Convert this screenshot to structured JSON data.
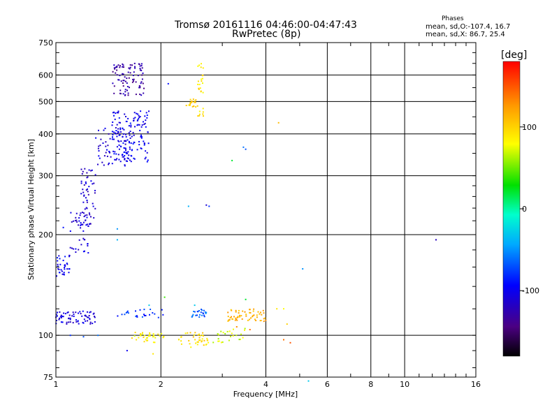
{
  "header": {
    "title_line1": "Tromsø 20161116 04:46:00-04:47:43",
    "title_line2": "RwPretec (8p)",
    "phases_title": "Phases",
    "phases_o": "mean, sd,O:-107.4, 16.7",
    "phases_x": "mean, sd,X:  86.7, 25.4"
  },
  "colorbar": {
    "label": "[deg]",
    "ticks": [
      100,
      0,
      -100
    ],
    "range": [
      -180,
      180
    ]
  },
  "chart_data": {
    "type": "scatter",
    "xlabel": "Frequency [MHz]",
    "ylabel": "Stationary phase Virtual Height [km]",
    "x_scale": "log",
    "y_scale": "log",
    "xlim": [
      1,
      16
    ],
    "ylim": [
      75,
      750
    ],
    "x_ticks": [
      1,
      2,
      4,
      6,
      8,
      10,
      16
    ],
    "y_ticks": [
      75,
      100,
      200,
      300,
      400,
      500,
      600,
      750
    ],
    "grid": true,
    "clusters": [
      {
        "x": [
          1.0,
          1.1
        ],
        "y": [
          150,
          175
        ],
        "n": 35,
        "phase": -100
      },
      {
        "x": [
          1.1,
          1.25
        ],
        "y": [
          175,
          240
        ],
        "n": 45,
        "phase": -108
      },
      {
        "x": [
          1.18,
          1.3
        ],
        "y": [
          210,
          320
        ],
        "n": 55,
        "phase": -112
      },
      {
        "x": [
          1.3,
          1.6
        ],
        "y": [
          320,
          420
        ],
        "n": 60,
        "phase": -110
      },
      {
        "x": [
          1.45,
          1.85
        ],
        "y": [
          330,
          470
        ],
        "n": 150,
        "phase": -100
      },
      {
        "x": [
          1.45,
          1.8
        ],
        "y": [
          520,
          650
        ],
        "n": 90,
        "phase": -130
      },
      {
        "x": [
          1.0,
          1.3
        ],
        "y": [
          108,
          118
        ],
        "n": 70,
        "phase": -108
      },
      {
        "x": [
          1.45,
          2.05
        ],
        "y": [
          113,
          120
        ],
        "n": 25,
        "phase": -80
      },
      {
        "x": [
          2.45,
          2.7
        ],
        "y": [
          113,
          120
        ],
        "n": 25,
        "phase": -65
      },
      {
        "x": [
          1.65,
          2.15
        ],
        "y": [
          95,
          102
        ],
        "n": 35,
        "phase": 85
      },
      {
        "x": [
          2.25,
          2.75
        ],
        "y": [
          92,
          102
        ],
        "n": 40,
        "phase": 95
      },
      {
        "x": [
          2.8,
          3.5
        ],
        "y": [
          95,
          105
        ],
        "n": 25,
        "phase": 70
      },
      {
        "x": [
          3.1,
          4.0
        ],
        "y": [
          110,
          120
        ],
        "n": 60,
        "phase": 115
      },
      {
        "x": [
          2.35,
          2.55
        ],
        "y": [
          480,
          510
        ],
        "n": 20,
        "phase": 100
      },
      {
        "x": [
          2.55,
          2.65
        ],
        "y": [
          530,
          650
        ],
        "n": 20,
        "phase": 90
      },
      {
        "x": [
          2.55,
          2.65
        ],
        "y": [
          450,
          480
        ],
        "n": 8,
        "phase": 90
      }
    ],
    "points": [
      {
        "x": 2.1,
        "y": 565,
        "phase": -90
      },
      {
        "x": 2.4,
        "y": 243,
        "phase": -40
      },
      {
        "x": 2.7,
        "y": 245,
        "phase": -110
      },
      {
        "x": 2.75,
        "y": 243,
        "phase": -80
      },
      {
        "x": 3.2,
        "y": 333,
        "phase": 20
      },
      {
        "x": 3.45,
        "y": 365,
        "phase": -60
      },
      {
        "x": 3.5,
        "y": 360,
        "phase": -70
      },
      {
        "x": 4.35,
        "y": 432,
        "phase": 110
      },
      {
        "x": 5.1,
        "y": 158,
        "phase": -50
      },
      {
        "x": 12.3,
        "y": 193,
        "phase": -120
      },
      {
        "x": 1.5,
        "y": 193,
        "phase": -40
      },
      {
        "x": 1.5,
        "y": 208,
        "phase": -50
      },
      {
        "x": 1.05,
        "y": 210,
        "phase": -90
      },
      {
        "x": 1.85,
        "y": 123,
        "phase": -30
      },
      {
        "x": 2.05,
        "y": 130,
        "phase": 40
      },
      {
        "x": 2.5,
        "y": 123,
        "phase": -30
      },
      {
        "x": 3.5,
        "y": 128,
        "phase": 20
      },
      {
        "x": 4.3,
        "y": 120,
        "phase": 90
      },
      {
        "x": 4.5,
        "y": 120,
        "phase": 80
      },
      {
        "x": 4.6,
        "y": 108,
        "phase": 100
      },
      {
        "x": 4.5,
        "y": 97,
        "phase": 140
      },
      {
        "x": 4.7,
        "y": 95,
        "phase": 150
      },
      {
        "x": 5.3,
        "y": 73,
        "phase": -30
      },
      {
        "x": 1.9,
        "y": 88,
        "phase": 90
      },
      {
        "x": 1.6,
        "y": 90,
        "phase": -100
      },
      {
        "x": 1.1,
        "y": 100,
        "phase": -80
      },
      {
        "x": 1.2,
        "y": 99,
        "phase": -70
      },
      {
        "x": 1.32,
        "y": 100,
        "phase": -60
      },
      {
        "x": 3.3,
        "y": 106,
        "phase": 130
      },
      {
        "x": 3.6,
        "y": 104,
        "phase": 140
      }
    ]
  }
}
